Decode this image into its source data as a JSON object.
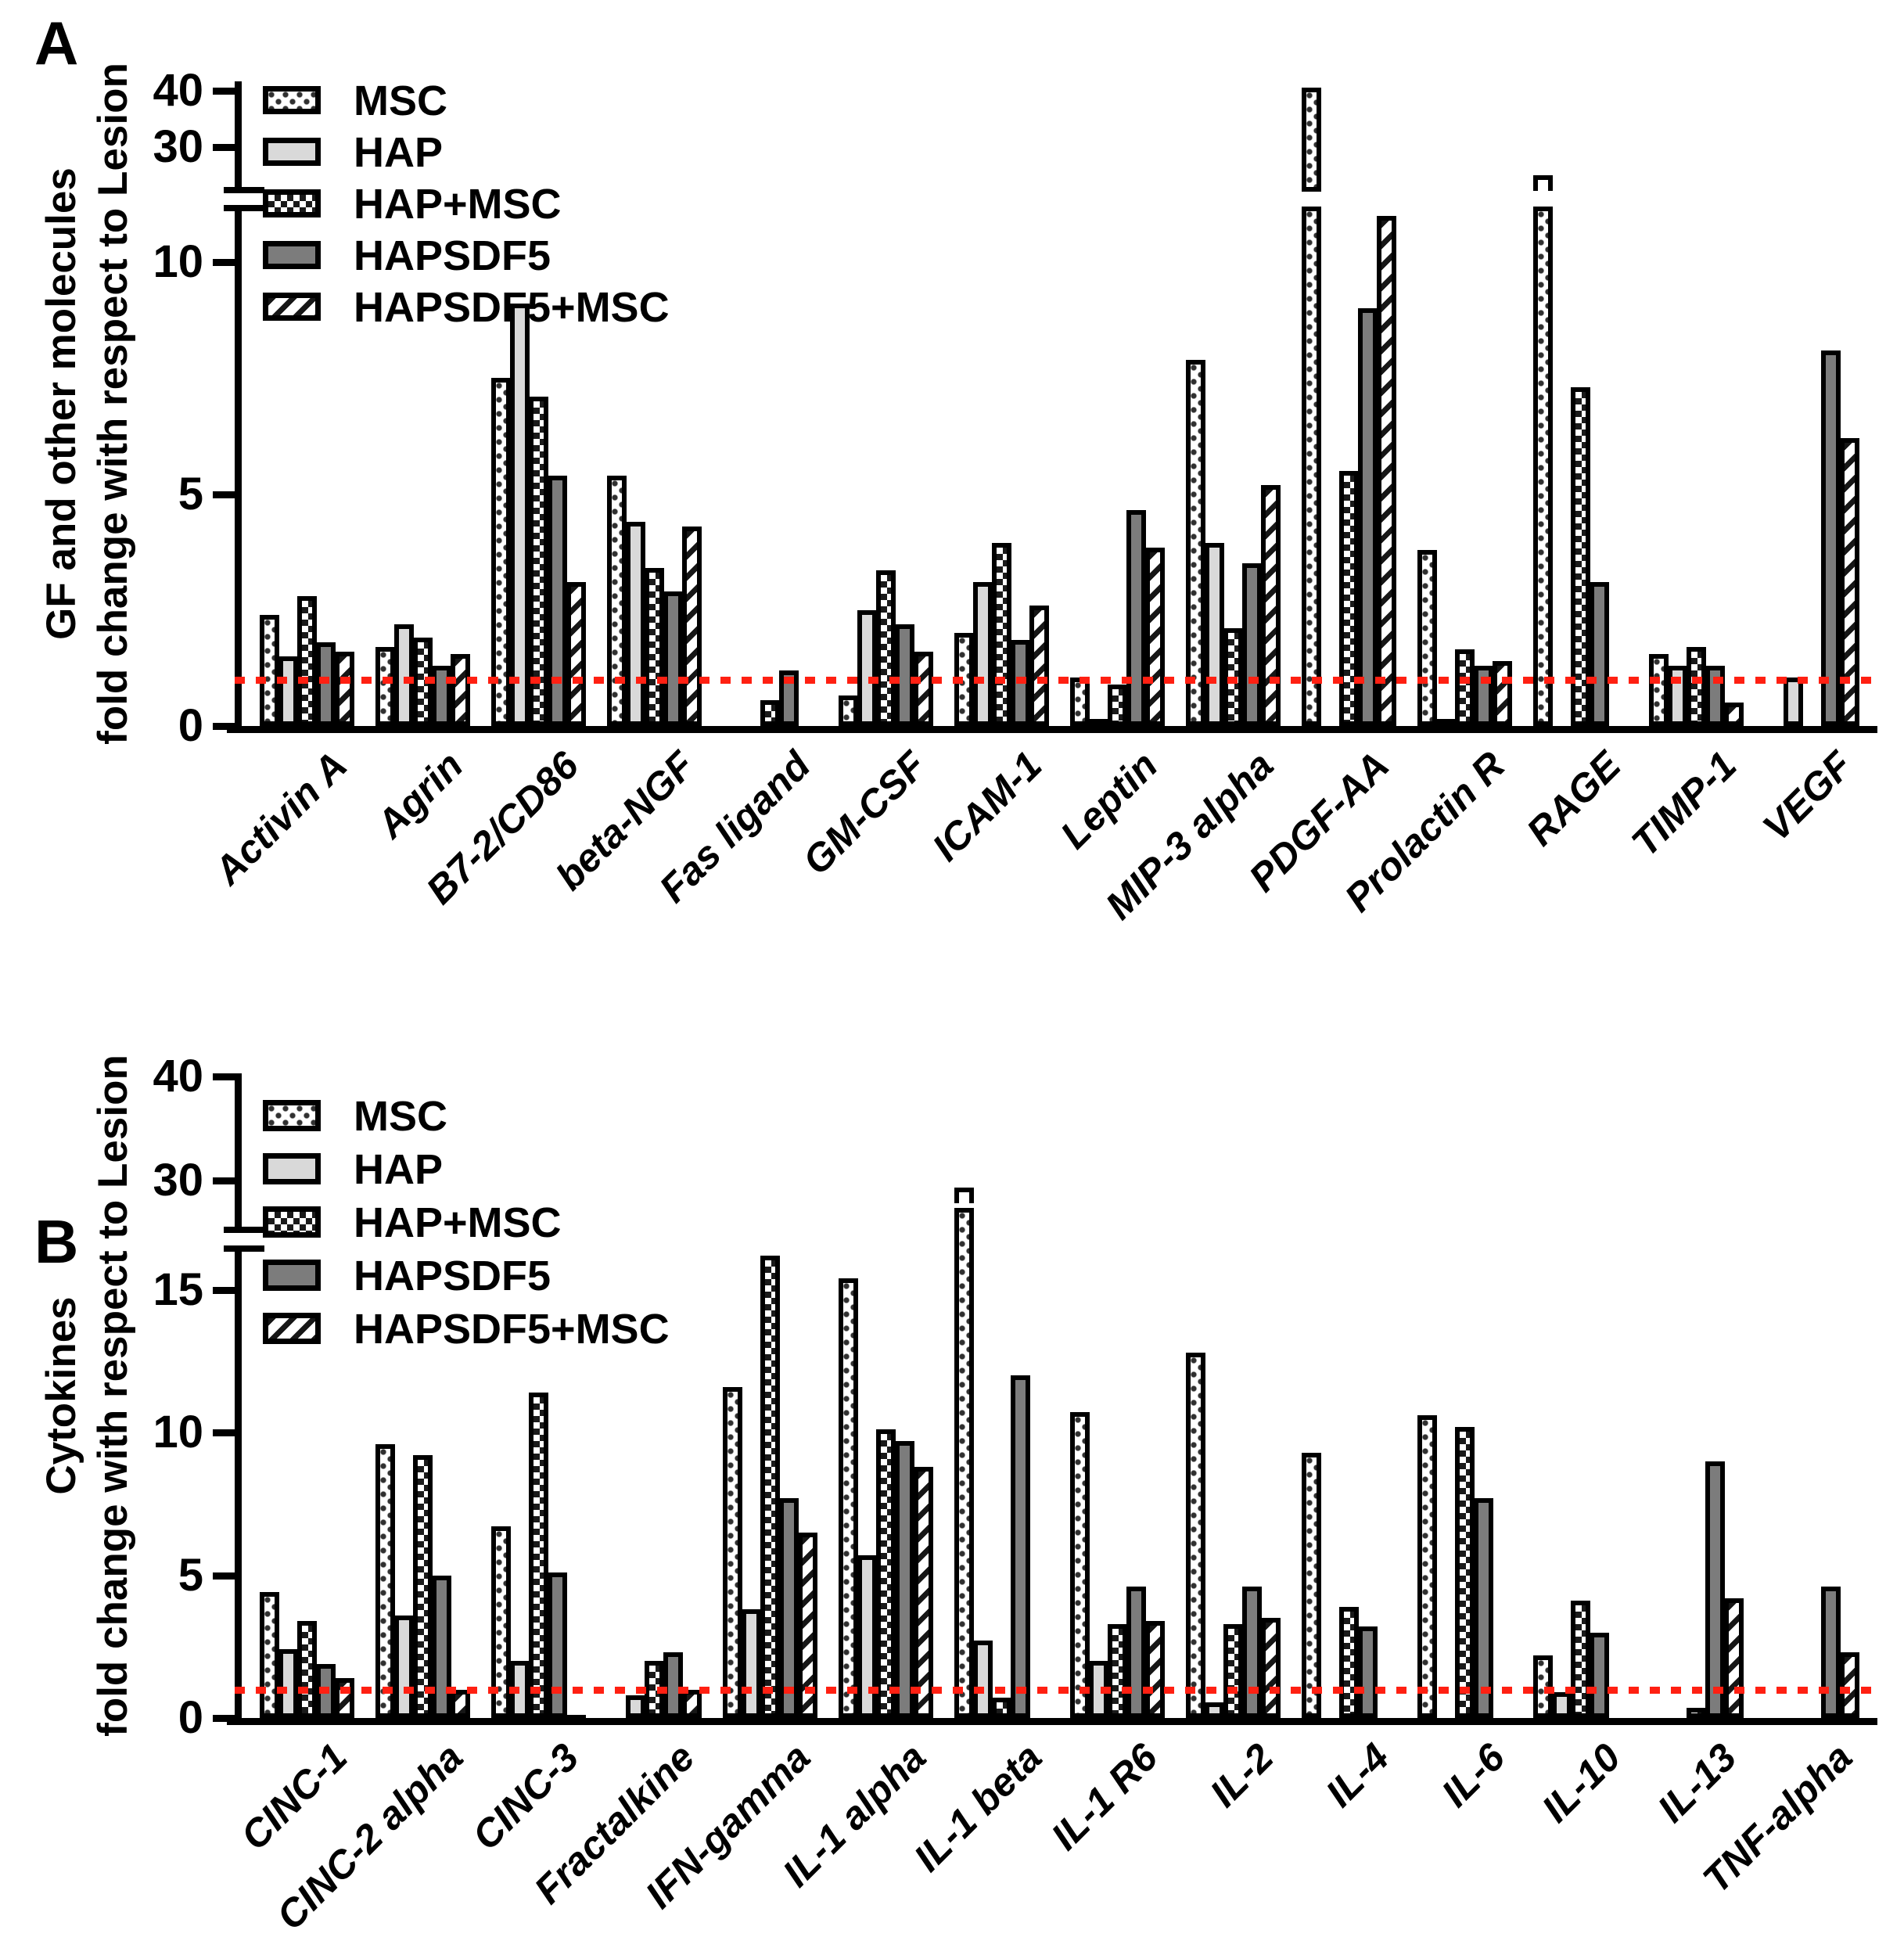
{
  "figure": {
    "panels": [
      {
        "letter": "A",
        "ylabel_line1": "GF and other molecules",
        "ylabel_line2": "fold change with respect to Lesion"
      },
      {
        "letter": "B",
        "ylabel_line1": "Cytokines",
        "ylabel_line2": "fold change with respect to Lesion"
      }
    ],
    "legend": {
      "items": [
        "MSC",
        "HAP",
        "HAP+MSC",
        "HAPSDF5",
        "HAPSDF5+MSC"
      ]
    },
    "reference_line": {
      "value": 1,
      "color": "#ff2012",
      "style": "dotted"
    },
    "colors": {
      "outline": "#000000",
      "background": "#ffffff",
      "hap_fill": "#d9d9d9",
      "hapsdf5_fill": "#7c7c7c",
      "reference_red": "#ff2012"
    }
  },
  "chart_data": [
    {
      "type": "bar",
      "panel": "A",
      "ylabel": "GF and other molecules fold change with respect to Lesion",
      "categories": [
        "Activin A",
        "Agrin",
        "B7-2/CD86",
        "beta-NGF",
        "Fas ligand",
        "GM-CSF",
        "ICAM-1",
        "Leptin",
        "MIP-3 alpha",
        "PDGF-AA",
        "Prolactin R",
        "RAGE",
        "TIMP-1",
        "VEGF"
      ],
      "series": [
        {
          "name": "MSC",
          "values": [
            2.4,
            1.7,
            7.5,
            5.4,
            0,
            0.65,
            2.0,
            1.05,
            7.9,
            40.5,
            3.8,
            24.5,
            1.55,
            0
          ]
        },
        {
          "name": "HAP",
          "values": [
            1.5,
            2.2,
            9.1,
            4.4,
            0,
            2.5,
            3.1,
            0.15,
            3.95,
            0,
            0.15,
            0,
            1.3,
            1.05
          ]
        },
        {
          "name": "HAP+MSC",
          "values": [
            2.8,
            1.9,
            7.1,
            3.4,
            0.55,
            3.35,
            3.95,
            0.9,
            2.1,
            5.5,
            1.65,
            7.3,
            1.7,
            0
          ]
        },
        {
          "name": "HAPSDF5",
          "values": [
            1.8,
            1.3,
            5.4,
            2.9,
            1.2,
            2.2,
            1.85,
            4.65,
            3.5,
            9.0,
            1.3,
            3.1,
            1.3,
            8.1
          ]
        },
        {
          "name": "HAPSDF5+MSC",
          "values": [
            1.6,
            1.55,
            3.1,
            4.3,
            0,
            1.6,
            2.6,
            3.85,
            5.2,
            11.0,
            1.4,
            0,
            0.5,
            6.2
          ]
        }
      ],
      "yticks": {
        "lower": [
          0,
          5,
          10
        ],
        "upper": [
          30,
          40
        ]
      },
      "axis_break": {
        "lower_range": [
          0,
          11.2
        ],
        "upper_range": [
          22,
          41.5
        ]
      },
      "broken_bars": [
        {
          "series": "MSC",
          "category": "PDGF-AA",
          "style": "gap"
        },
        {
          "series": "MSC",
          "category": "RAGE",
          "style": "bracket"
        }
      ],
      "reference_line": 1,
      "legend_position": "top-left",
      "grid": false
    },
    {
      "type": "bar",
      "panel": "B",
      "ylabel": "Cytokines fold change with respect to Lesion",
      "categories": [
        "CINC-1",
        "CINC-2 alpha",
        "CINC-3",
        "Fractalkine",
        "IFN-gamma",
        "IL-1 alpha",
        "IL-1 beta",
        "IL-1 R6",
        "IL-2",
        "IL-4",
        "IL-6",
        "IL-10",
        "IL-13",
        "TNF-alpha"
      ],
      "series": [
        {
          "name": "MSC",
          "values": [
            4.4,
            9.6,
            6.7,
            0,
            11.6,
            15.4,
            29,
            10.7,
            12.8,
            9.3,
            10.6,
            2.2,
            0,
            0
          ]
        },
        {
          "name": "HAP",
          "values": [
            2.4,
            3.6,
            2.0,
            0.8,
            3.8,
            5.7,
            2.7,
            2.0,
            0.55,
            0,
            0,
            0.9,
            0,
            0
          ]
        },
        {
          "name": "HAP+MSC",
          "values": [
            3.4,
            9.2,
            11.4,
            2.0,
            16.2,
            10.1,
            0.7,
            3.3,
            3.3,
            3.9,
            10.2,
            4.1,
            0.35,
            0
          ]
        },
        {
          "name": "HAPSDF5",
          "values": [
            1.9,
            5.0,
            5.1,
            2.3,
            7.7,
            9.7,
            12.0,
            4.6,
            4.6,
            3.2,
            7.7,
            3.0,
            9.0,
            4.6
          ]
        },
        {
          "name": "HAPSDF5+MSC",
          "values": [
            1.4,
            1.0,
            0.1,
            1.0,
            6.5,
            8.8,
            0,
            3.4,
            3.5,
            0,
            0,
            0,
            4.2,
            2.3
          ]
        }
      ],
      "yticks": {
        "lower": [
          0,
          5,
          10,
          15
        ],
        "upper": [
          30,
          40
        ]
      },
      "axis_break": {
        "lower_range": [
          0,
          16.5
        ],
        "upper_range": [
          25,
          40.3
        ]
      },
      "broken_bars": [
        {
          "series": "MSC",
          "category": "IL-1 beta",
          "style": "bracket-through"
        }
      ],
      "reference_line": 1,
      "legend_position": "top-left",
      "grid": false
    }
  ]
}
